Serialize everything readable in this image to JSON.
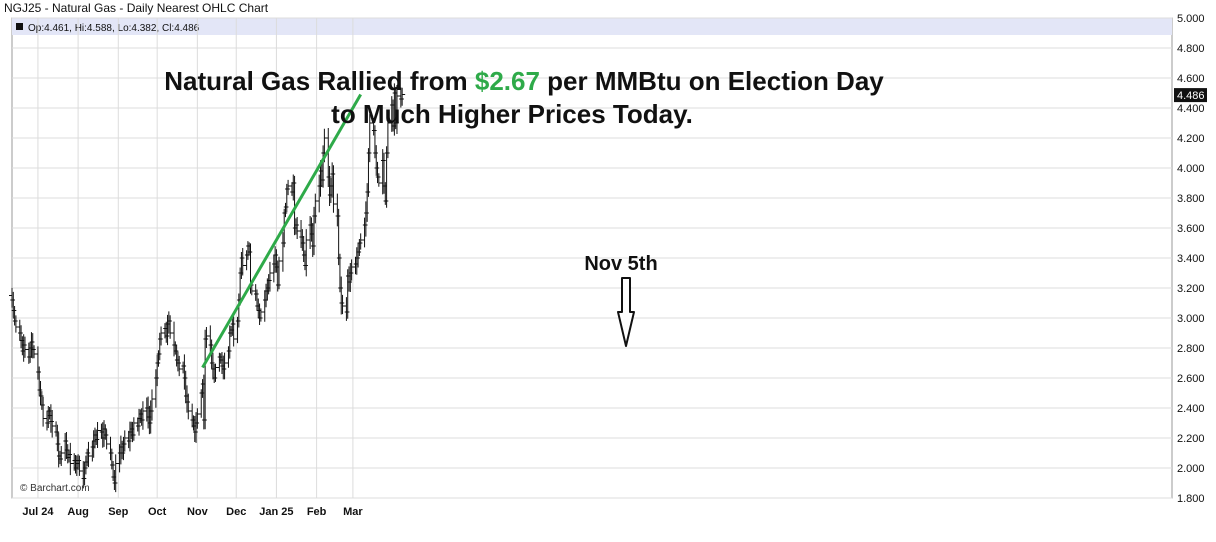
{
  "chart_title": "NGJ25 - Natural Gas - Daily Nearest OHLC Chart",
  "ohlc_readout": "Op:4.461, Hi:4.588, Lo:4.382, Cl:4.486",
  "last_price_label": "4.486",
  "footer": "© Barchart.com",
  "annotations": {
    "headline_part1": "Natural Gas Rallied from ",
    "headline_price": "$2.67",
    "headline_part2": " per MMBtu on Election Day",
    "headline_line2": "to Much Higher Prices Today.",
    "marker_label": "Nov 5th"
  },
  "colors": {
    "trendline": "#2eaa49",
    "bars": "#111111",
    "grid": "#dcdcdc",
    "last_price_box": "#111111",
    "header_band": "#e3e6f7"
  },
  "chart_data": {
    "type": "ohlc",
    "title": "NGJ25 - Natural Gas - Daily Nearest OHLC Chart",
    "ylim": [
      1.8,
      5.0
    ],
    "y_ticks": [
      1.8,
      2.0,
      2.2,
      2.4,
      2.6,
      2.8,
      3.0,
      3.2,
      3.4,
      3.6,
      3.8,
      4.0,
      4.2,
      4.4,
      4.6,
      4.8,
      5.0
    ],
    "y_tick_labels": [
      "1.800",
      "2.000",
      "2.200",
      "2.400",
      "2.600",
      "2.800",
      "3.000",
      "3.200",
      "3.400",
      "3.600",
      "3.800",
      "4.000",
      "4.200",
      "4.400",
      "4.600",
      "4.800",
      "5.000"
    ],
    "x_tick_labels": [
      "Jul 24",
      "Aug",
      "Sep",
      "Oct",
      "Nov",
      "Dec",
      "Jan 25",
      "Feb",
      "Mar"
    ],
    "grid": true,
    "last_close": 4.486,
    "trendline": {
      "from": {
        "date": "2024-11-05",
        "price": 2.67
      },
      "to": {
        "date": "2025-03-07",
        "price": 4.49
      }
    },
    "closes": [
      3.12,
      3.05,
      2.98,
      2.94,
      2.9,
      2.85,
      2.78,
      2.82,
      2.79,
      2.74,
      2.8,
      2.84,
      2.79,
      2.76,
      2.64,
      2.52,
      2.48,
      2.42,
      2.33,
      2.3,
      2.38,
      2.35,
      2.31,
      2.28,
      2.24,
      2.16,
      2.08,
      2.06,
      2.1,
      2.18,
      2.12,
      2.07,
      2.09,
      2.03,
      2.05,
      2.0,
      2.03,
      2.05,
      1.98,
      1.93,
      2.0,
      2.04,
      2.1,
      2.08,
      2.14,
      2.18,
      2.22,
      2.19,
      2.25,
      2.24,
      2.2,
      2.26,
      2.22,
      2.16,
      2.1,
      2.02,
      1.94,
      1.9,
      2.03,
      2.1,
      2.14,
      2.1,
      2.16,
      2.2,
      2.18,
      2.24,
      2.26,
      2.22,
      2.3,
      2.28,
      2.33,
      2.36,
      2.32,
      2.38,
      2.4,
      2.34,
      2.3,
      2.38,
      2.46,
      2.6,
      2.7,
      2.76,
      2.86,
      2.9,
      2.93,
      2.88,
      2.96,
      2.98,
      2.9,
      2.82,
      2.78,
      2.72,
      2.7,
      2.66,
      2.68,
      2.6,
      2.48,
      2.44,
      2.38,
      2.32,
      2.28,
      2.24,
      2.3,
      2.36,
      2.5,
      2.56,
      2.32,
      2.86,
      2.88,
      2.82,
      2.7,
      2.66,
      2.6,
      2.67,
      2.74,
      2.72,
      2.68,
      2.66,
      2.7,
      2.78,
      2.9,
      2.92,
      2.96,
      2.86,
      2.98,
      3.12,
      3.3,
      3.4,
      3.35,
      3.42,
      3.48,
      3.44,
      3.22,
      3.18,
      3.16,
      3.08,
      3.05,
      3.0,
      3.04,
      3.12,
      3.18,
      3.2,
      3.25,
      3.3,
      3.36,
      3.42,
      3.34,
      3.22,
      3.38,
      3.5,
      3.7,
      3.74,
      3.86,
      3.88,
      3.84,
      3.9,
      3.6,
      3.62,
      3.58,
      3.54,
      3.5,
      3.42,
      3.35,
      3.52,
      3.62,
      3.56,
      3.48,
      3.68,
      3.78,
      3.88,
      3.98,
      3.92,
      4.1,
      4.2,
      3.94,
      3.82,
      3.88,
      3.96,
      3.76,
      3.68,
      3.4,
      3.2,
      3.1,
      3.08,
      3.04,
      3.28,
      3.24,
      3.3,
      3.34,
      3.36,
      3.4,
      3.44,
      3.5,
      3.52,
      3.62,
      3.7,
      3.84,
      4.1,
      4.3,
      4.25,
      4.1,
      4.0,
      3.94,
      3.9,
      4.05,
      3.88,
      3.78,
      4.1,
      4.3,
      4.42,
      4.28,
      4.5,
      4.3,
      4.48,
      4.46,
      4.49
    ]
  }
}
